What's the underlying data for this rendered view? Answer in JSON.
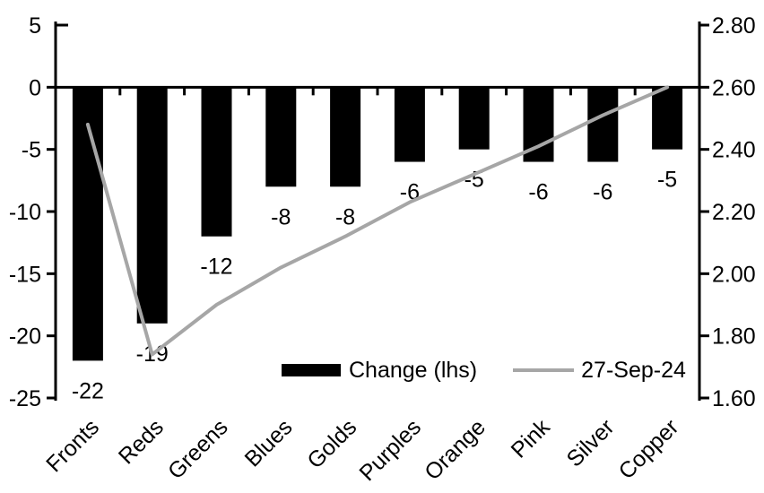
{
  "chart_data": {
    "type": "combo-bar-line",
    "title": "",
    "categories": [
      "Fronts",
      "Reds",
      "Greens",
      "Blues",
      "Golds",
      "Purples",
      "Orange",
      "Pink",
      "Silver",
      "Copper"
    ],
    "series": [
      {
        "name": "Change (lhs)",
        "type": "bar",
        "axis": "left",
        "color": "#000000",
        "values": [
          -22,
          -19,
          -12,
          -8,
          -8,
          -6,
          -5,
          -6,
          -6,
          -5
        ],
        "data_labels": [
          "-22",
          "-19",
          "-12",
          "-8",
          "-8",
          "-6",
          "-5",
          "-6",
          "-6",
          "-5"
        ]
      },
      {
        "name": "27-Sep-24",
        "type": "line",
        "axis": "right",
        "color": "#a6a6a6",
        "values": [
          2.48,
          1.74,
          1.9,
          2.02,
          2.12,
          2.23,
          2.32,
          2.41,
          2.51,
          2.6
        ]
      }
    ],
    "left_axis": {
      "min": -25,
      "max": 5,
      "tick_values": [
        5,
        0,
        -5,
        -10,
        -15,
        -20,
        -25
      ],
      "tick_labels": [
        "5",
        "0",
        "-5",
        "-10",
        "-15",
        "-20",
        "-25"
      ]
    },
    "right_axis": {
      "min": 1.6,
      "max": 2.8,
      "tick_values": [
        2.8,
        2.6,
        2.4,
        2.2,
        2.0,
        1.8,
        1.6
      ],
      "tick_labels": [
        "2.80",
        "2.60",
        "2.40",
        "2.20",
        "2.00",
        "1.80",
        "1.60"
      ]
    },
    "grid": "off",
    "legend_position": "bottom-inside",
    "axis_color": "#000000",
    "background": "#ffffff"
  }
}
